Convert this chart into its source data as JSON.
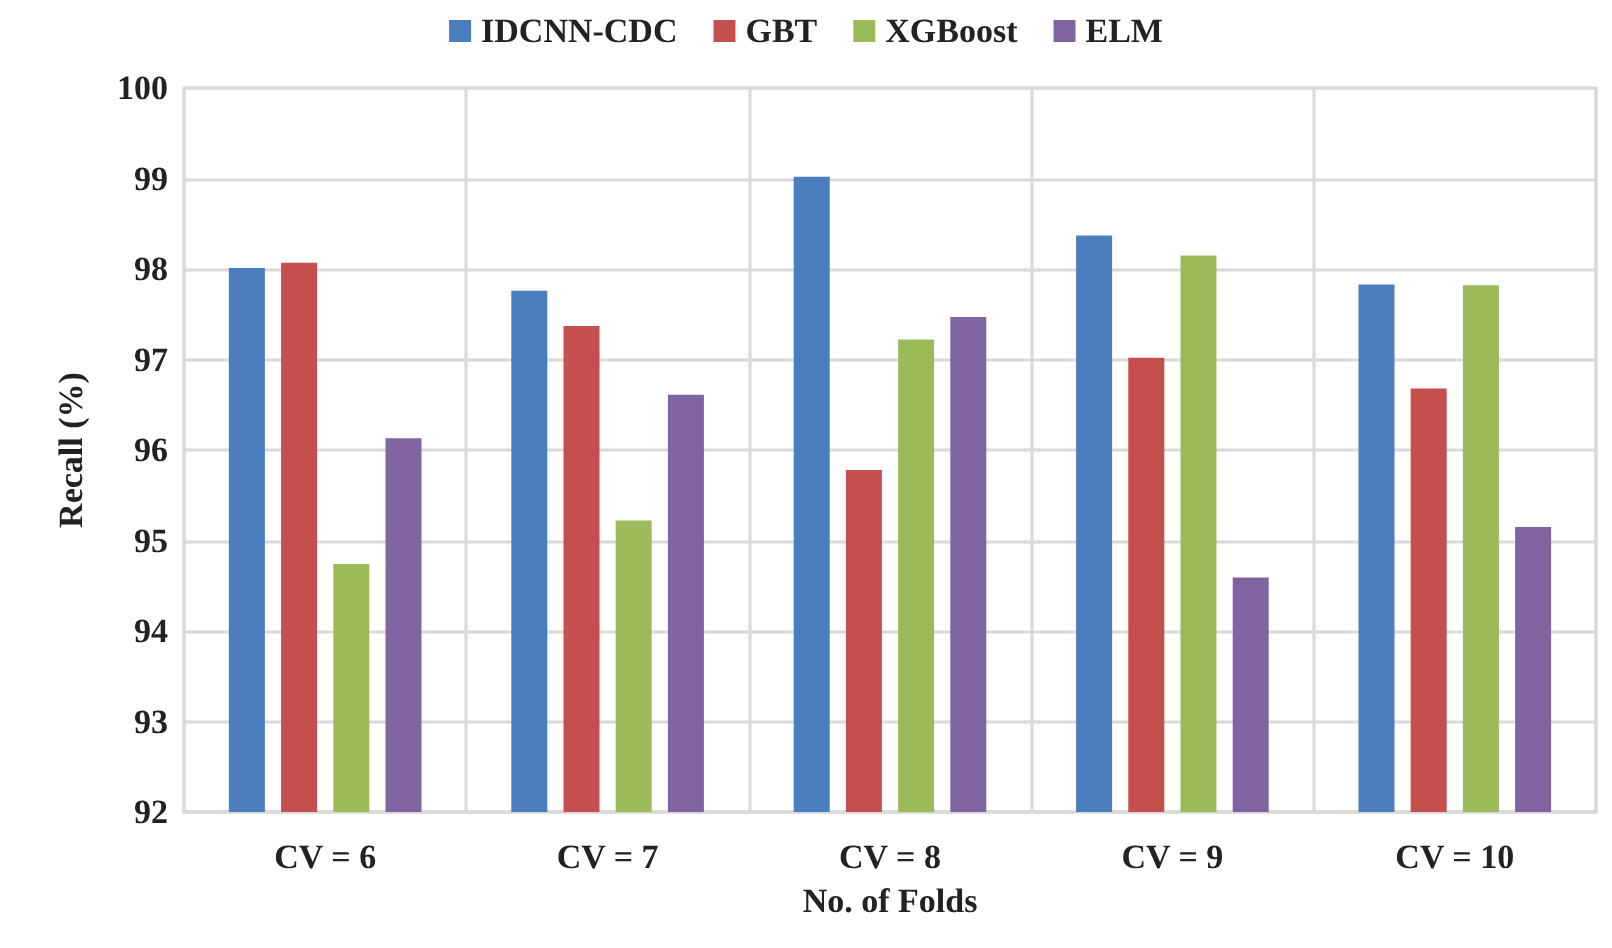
{
  "chart_data": {
    "type": "bar",
    "xlabel": "No. of Folds",
    "ylabel": "Recall (%)",
    "categories": [
      "CV = 6",
      "CV = 7",
      "CV = 8",
      "CV = 9",
      "CV = 10"
    ],
    "series": [
      {
        "name": "IDCNN-CDC",
        "color": "#4a7ebf",
        "values": [
          98.01,
          97.76,
          99.02,
          98.37,
          97.83
        ]
      },
      {
        "name": "GBT",
        "color": "#c44f4d",
        "values": [
          98.07,
          97.37,
          95.78,
          97.02,
          96.68
        ]
      },
      {
        "name": "XGBoost",
        "color": "#9bbb59",
        "values": [
          94.74,
          95.22,
          97.22,
          98.15,
          97.82
        ]
      },
      {
        "name": "ELM",
        "color": "#8064a2",
        "values": [
          96.13,
          96.61,
          97.47,
          94.59,
          95.15
        ]
      }
    ],
    "ylim": [
      92,
      100
    ],
    "yticks": [
      92,
      93,
      94,
      95,
      96,
      97,
      98,
      99,
      100
    ],
    "grid": true,
    "legend": "top"
  }
}
